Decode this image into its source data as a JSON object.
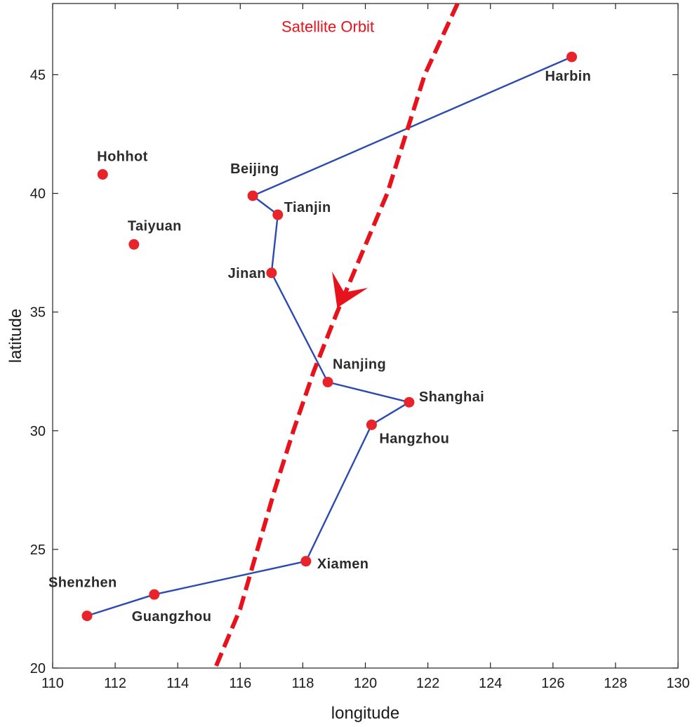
{
  "chart_data": {
    "type": "scatter",
    "xlabel": "longitude",
    "ylabel": "latitude",
    "xlim": [
      110,
      130
    ],
    "ylim": [
      20,
      48
    ],
    "x_ticks": [
      "110",
      "112",
      "114",
      "116",
      "118",
      "120",
      "122",
      "124",
      "126",
      "128",
      "130"
    ],
    "y_ticks": [
      "20",
      "25",
      "30",
      "35",
      "40",
      "45"
    ],
    "grid": false,
    "cities": [
      {
        "name": "Harbin",
        "x": 126.6,
        "y": 45.75
      },
      {
        "name": "Hohhot",
        "x": 111.6,
        "y": 40.8
      },
      {
        "name": "Beijing",
        "x": 116.4,
        "y": 39.9
      },
      {
        "name": "Tianjin",
        "x": 117.2,
        "y": 39.1
      },
      {
        "name": "Taiyuan",
        "x": 112.6,
        "y": 37.85
      },
      {
        "name": "Jinan",
        "x": 117.0,
        "y": 36.65
      },
      {
        "name": "Nanjing",
        "x": 118.8,
        "y": 32.05
      },
      {
        "name": "Shanghai",
        "x": 121.4,
        "y": 31.2
      },
      {
        "name": "Hangzhou",
        "x": 120.2,
        "y": 30.25
      },
      {
        "name": "Xiamen",
        "x": 118.1,
        "y": 24.5
      },
      {
        "name": "Guangzhou",
        "x": 113.25,
        "y": 23.1
      },
      {
        "name": "Shenzhen",
        "x": 111.1,
        "y": 22.2
      }
    ],
    "route": [
      "Harbin",
      "Beijing",
      "Tianjin",
      "Jinan",
      "Nanjing",
      "Shanghai",
      "Hangzhou",
      "Xiamen",
      "Guangzhou",
      "Shenzhen"
    ],
    "orbit": {
      "label": "Satellite Orbit",
      "direction": "southward",
      "points": [
        {
          "x": 122.95,
          "y": 48.0
        },
        {
          "x": 121.9,
          "y": 45.0
        },
        {
          "x": 121.3,
          "y": 42.5
        },
        {
          "x": 120.7,
          "y": 40.0
        },
        {
          "x": 119.9,
          "y": 37.5
        },
        {
          "x": 119.1,
          "y": 35.0
        },
        {
          "x": 118.35,
          "y": 32.5
        },
        {
          "x": 117.7,
          "y": 30.0
        },
        {
          "x": 117.1,
          "y": 27.5
        },
        {
          "x": 116.55,
          "y": 25.0
        },
        {
          "x": 116.0,
          "y": 22.5
        },
        {
          "x": 115.2,
          "y": 20.0
        }
      ]
    },
    "colors": {
      "city_marker": "#e8232a",
      "route": "#2c4bb0",
      "orbit": "#e8121c",
      "axis": "#222222"
    }
  }
}
